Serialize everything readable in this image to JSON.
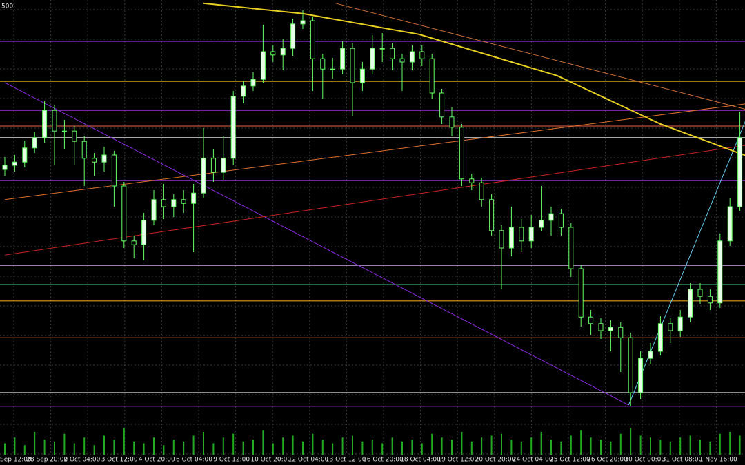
{
  "chart_data": {
    "type": "candlestick",
    "corner_label": "500",
    "x_labels": [
      "Sep 12:00",
      "28 Sep 20:00",
      "2 Oct 04:00",
      "3 Oct 12:00",
      "4 Oct 20:00",
      "6 Oct 04:00",
      "9 Oct 12:00",
      "10 Oct 20:00",
      "12 Oct 04:00",
      "13 Oct 12:00",
      "16 Oct 20:00",
      "18 Oct 04:00",
      "19 Oct 12:00",
      "20 Oct 20:00",
      "24 Oct 04:00",
      "25 Oct 12:00",
      "26 Oct 20:00",
      "30 Oct 00:00",
      "31 Oct 08:00",
      "1 Nov 16:00"
    ],
    "ylim": [
      0,
      100
    ],
    "xlim": [
      0,
      75
    ],
    "grid": true,
    "up_color": "#e6ffe6",
    "down_color": "#000000",
    "wick_color": "#66ff66",
    "volume_color": "#22aa22",
    "open": [
      59.0,
      60.0,
      60.8,
      64.2,
      66.7,
      73.3,
      68.3,
      68.3,
      65.8,
      61.7,
      60.8,
      62.5,
      55.0,
      41.7,
      40.8,
      46.7,
      51.7,
      50.0,
      51.7,
      50.8,
      53.3,
      61.7,
      58.3,
      61.7,
      76.7,
      79.2,
      80.8,
      87.5,
      86.7,
      88.3,
      94.2,
      95.0,
      85.8,
      83.3,
      83.3,
      88.3,
      80.0,
      83.3,
      88.3,
      88.3,
      85.8,
      85.0,
      87.5,
      85.8,
      77.5,
      71.7,
      69.2,
      56.7,
      55.8,
      51.7,
      44.2,
      40.0,
      45.0,
      41.7,
      45.0,
      46.7,
      48.3,
      45.0,
      35.0,
      23.3,
      21.7,
      20.0,
      20.8,
      18.3,
      5.0,
      13.3,
      15.0,
      21.7,
      20.0,
      23.3,
      30.0,
      28.3,
      26.7,
      41.7,
      50.0
    ],
    "high": [
      62.0,
      62.5,
      66.0,
      68.0,
      75.5,
      74.5,
      71.0,
      69.5,
      67.0,
      63.0,
      64.5,
      63.5,
      56.0,
      43.0,
      48.5,
      54.0,
      55.5,
      53.0,
      54.0,
      55.5,
      69.0,
      64.0,
      67.0,
      78.0,
      80.5,
      82.5,
      94.0,
      89.0,
      90.5,
      95.5,
      97.5,
      96.0,
      87.0,
      86.0,
      90.0,
      89.5,
      85.0,
      91.5,
      92.0,
      89.5,
      87.0,
      89.0,
      89.0,
      87.0,
      78.5,
      74.0,
      70.0,
      58.0,
      57.0,
      53.0,
      45.5,
      50.0,
      47.0,
      48.0,
      55.0,
      50.0,
      49.5,
      46.0,
      36.0,
      25.0,
      23.0,
      22.5,
      22.0,
      19.5,
      15.0,
      17.0,
      23.5,
      23.0,
      25.0,
      31.5,
      31.5,
      30.0,
      43.5,
      52.0,
      73.0
    ],
    "low": [
      57.5,
      58.5,
      59.5,
      63.0,
      65.5,
      60.0,
      64.0,
      60.0,
      55.0,
      57.5,
      58.5,
      50.0,
      40.0,
      37.5,
      37.0,
      45.5,
      47.0,
      47.5,
      48.5,
      39.0,
      52.0,
      56.0,
      56.5,
      60.0,
      75.0,
      78.0,
      80.0,
      85.0,
      83.0,
      86.5,
      93.0,
      78.0,
      76.0,
      81.0,
      82.0,
      72.0,
      78.0,
      82.0,
      85.0,
      83.0,
      78.0,
      83.0,
      84.0,
      76.0,
      70.0,
      67.0,
      55.0,
      54.0,
      50.0,
      43.0,
      30.0,
      38.0,
      39.0,
      40.0,
      44.0,
      43.0,
      43.0,
      33.0,
      21.0,
      19.0,
      18.0,
      15.0,
      10.0,
      1.7,
      3.5,
      12.0,
      14.0,
      17.0,
      18.5,
      22.0,
      26.5,
      25.0,
      25.5,
      40.5,
      49.0
    ],
    "close": [
      60.0,
      60.8,
      64.2,
      66.7,
      73.3,
      68.3,
      68.3,
      65.8,
      61.7,
      60.8,
      62.5,
      55.0,
      41.7,
      40.8,
      46.7,
      51.7,
      50.0,
      51.7,
      50.8,
      53.3,
      61.7,
      58.3,
      61.7,
      76.7,
      79.2,
      80.8,
      87.5,
      86.7,
      88.3,
      94.2,
      95.0,
      85.8,
      83.3,
      83.3,
      88.3,
      80.0,
      83.3,
      88.3,
      88.3,
      85.8,
      85.0,
      87.5,
      85.8,
      77.5,
      71.7,
      69.2,
      56.7,
      55.8,
      51.7,
      44.2,
      40.0,
      45.0,
      41.7,
      45.0,
      46.7,
      48.3,
      45.0,
      35.0,
      23.3,
      21.7,
      20.0,
      20.8,
      18.3,
      5.0,
      13.3,
      15.0,
      21.7,
      20.0,
      23.3,
      30.0,
      28.3,
      26.7,
      41.7,
      50.0,
      66.7
    ],
    "volume": [
      30,
      45,
      25,
      60,
      40,
      35,
      55,
      30,
      45,
      25,
      50,
      40,
      70,
      35,
      30,
      45,
      25,
      40,
      35,
      50,
      60,
      30,
      45,
      55,
      35,
      40,
      65,
      30,
      45,
      50,
      35,
      55,
      40,
      30,
      45,
      50,
      35,
      40,
      30,
      45,
      35,
      40,
      30,
      55,
      45,
      40,
      60,
      35,
      45,
      50,
      55,
      40,
      35,
      45,
      60,
      40,
      35,
      50,
      65,
      45,
      40,
      35,
      55,
      70,
      50,
      45,
      40,
      35,
      45,
      50,
      40,
      35,
      55,
      60,
      50
    ],
    "levels": [
      {
        "value": 90.0,
        "color": "#8a2be2"
      },
      {
        "value": 80.3,
        "color": "#d4a017"
      },
      {
        "value": 73.3,
        "color": "#9b30d0"
      },
      {
        "value": 69.5,
        "color": "#c0503a"
      },
      {
        "value": 66.7,
        "color": "#e0e0e0"
      },
      {
        "value": 56.3,
        "color": "#9b30d0"
      },
      {
        "value": 35.8,
        "color": "#d9a0f0"
      },
      {
        "value": 31.2,
        "color": "#2e8b57"
      },
      {
        "value": 27.2,
        "color": "#e0a020"
      },
      {
        "value": 18.3,
        "color": "#d04030"
      },
      {
        "value": 5.0,
        "color": "#e0e0e0"
      },
      {
        "value": 1.7,
        "color": "#8a2be2"
      }
    ],
    "trend_lines": [
      {
        "x": [
          0,
          62.8
        ],
        "values": [
          80.0,
          2.0
        ],
        "color": "#8a2be2"
      },
      {
        "x": [
          0,
          75
        ],
        "values": [
          51.7,
          75.0
        ],
        "color": "#e07030"
      },
      {
        "x": [
          0,
          75
        ],
        "values": [
          38.3,
          65.0
        ],
        "color": "#cc2222"
      },
      {
        "x": [
          33.3,
          75
        ],
        "values": [
          99.2,
          73.3
        ],
        "color": "#d0703a"
      },
      {
        "x": [
          62.8,
          75
        ],
        "values": [
          2.0,
          73.3
        ],
        "color": "#66ccee"
      }
    ],
    "moving_average": {
      "x": [
        20,
        30,
        41.7,
        55.6,
        66,
        75
      ],
      "values": [
        99.2,
        96.7,
        91.7,
        81.7,
        70.0,
        62.0
      ],
      "color": "#e8d020"
    }
  }
}
